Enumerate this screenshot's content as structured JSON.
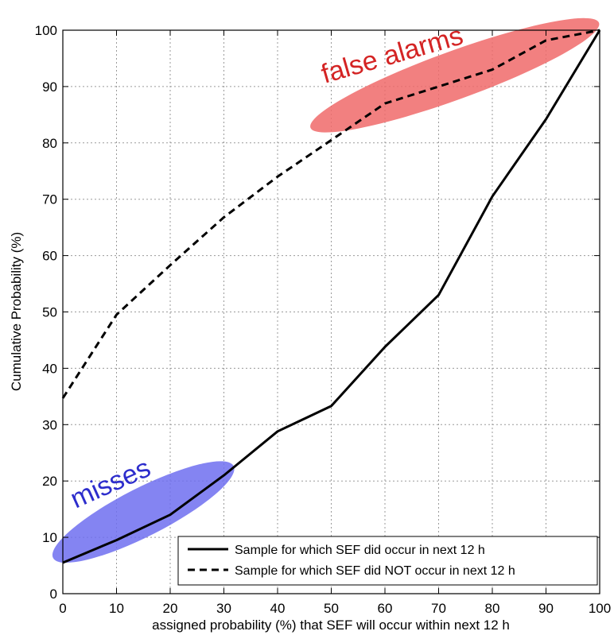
{
  "chart_data": {
    "type": "line",
    "xlabel": "assigned probability (%) that SEF will occur within next 12 h",
    "ylabel": "Cumulative Probability (%)",
    "xlim": [
      0,
      100
    ],
    "ylim": [
      0,
      100
    ],
    "xticks": [
      0,
      10,
      20,
      30,
      40,
      50,
      60,
      70,
      80,
      90,
      100
    ],
    "yticks": [
      0,
      10,
      20,
      30,
      40,
      50,
      60,
      70,
      80,
      90,
      100
    ],
    "grid": true,
    "legend_position": "bottom-right",
    "series": [
      {
        "name": "Sample for which SEF did occur in next 12 h",
        "line_style": "solid",
        "color": "#000000",
        "x": [
          0,
          10,
          20,
          30,
          40,
          50,
          60,
          70,
          80,
          90,
          100
        ],
        "y": [
          5.5,
          9.5,
          14,
          21,
          28.8,
          33.3,
          43.8,
          53,
          70.5,
          84.2,
          100
        ]
      },
      {
        "name": "Sample for which SEF did NOT occur in next 12 h",
        "line_style": "dashed",
        "color": "#000000",
        "x": [
          0,
          10,
          20,
          30,
          40,
          50,
          60,
          70,
          80,
          90,
          100
        ],
        "y": [
          34.7,
          49.5,
          58.3,
          66.8,
          74,
          80.5,
          87,
          90,
          93,
          98.2,
          100
        ]
      }
    ],
    "annotations": [
      {
        "text": "misses",
        "color": "#2d2dcc",
        "fill": "#6e6ef0",
        "center": [
          15,
          14.5
        ],
        "target": "lower-left region"
      },
      {
        "text": "false alarms",
        "color": "#d42424",
        "fill": "#f06a6a",
        "center": [
          73,
          92
        ],
        "target": "upper-right region"
      }
    ]
  }
}
